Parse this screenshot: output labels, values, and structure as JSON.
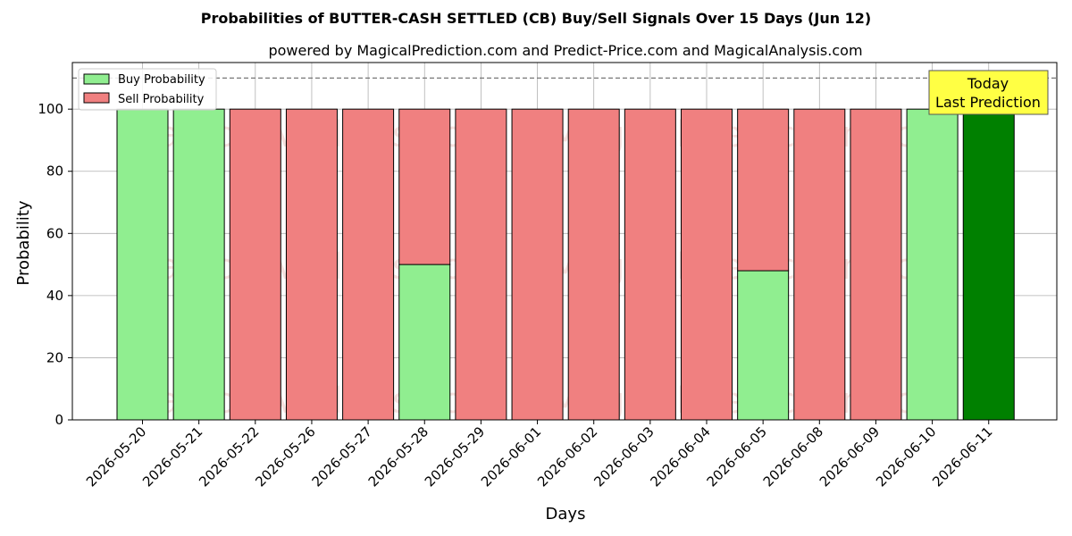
{
  "chart_data": {
    "type": "bar",
    "title": "Probabilities of BUTTER-CASH SETTLED (CB) Buy/Sell Signals Over 15 Days (Jun 12)",
    "subtitle": "powered by MagicalPrediction.com and Predict-Price.com and MagicalAnalysis.com",
    "xlabel": "Days",
    "ylabel": "Probability",
    "ylim": [
      0,
      115
    ],
    "yticks": [
      0,
      20,
      40,
      60,
      80,
      100
    ],
    "grid": true,
    "legend_position": "top-left",
    "categories": [
      "2026-05-20",
      "2026-05-21",
      "2026-05-22",
      "2026-05-26",
      "2026-05-27",
      "2026-05-28",
      "2026-05-29",
      "2026-06-01",
      "2026-06-02",
      "2026-06-03",
      "2026-06-04",
      "2026-06-05",
      "2026-06-08",
      "2026-06-09",
      "2026-06-10",
      "2026-06-11"
    ],
    "series": [
      {
        "name": "Buy Probability",
        "color": "#90ee90",
        "values": [
          100,
          100,
          0,
          0,
          0,
          50,
          0,
          0,
          0,
          0,
          0,
          48,
          0,
          0,
          100,
          100
        ]
      },
      {
        "name": "Sell Probability",
        "color": "#f08080",
        "values": [
          0,
          0,
          100,
          100,
          100,
          50,
          100,
          100,
          100,
          100,
          100,
          52,
          100,
          100,
          0,
          0
        ]
      }
    ],
    "today_bar_color": "#008000",
    "reference_line": 110,
    "annotation": {
      "line1": "Today",
      "line2": "Last Prediction",
      "background": "#ffff44"
    },
    "watermarks": [
      "MagicalAnalysis.com",
      "MagicalPrediction.com"
    ]
  }
}
